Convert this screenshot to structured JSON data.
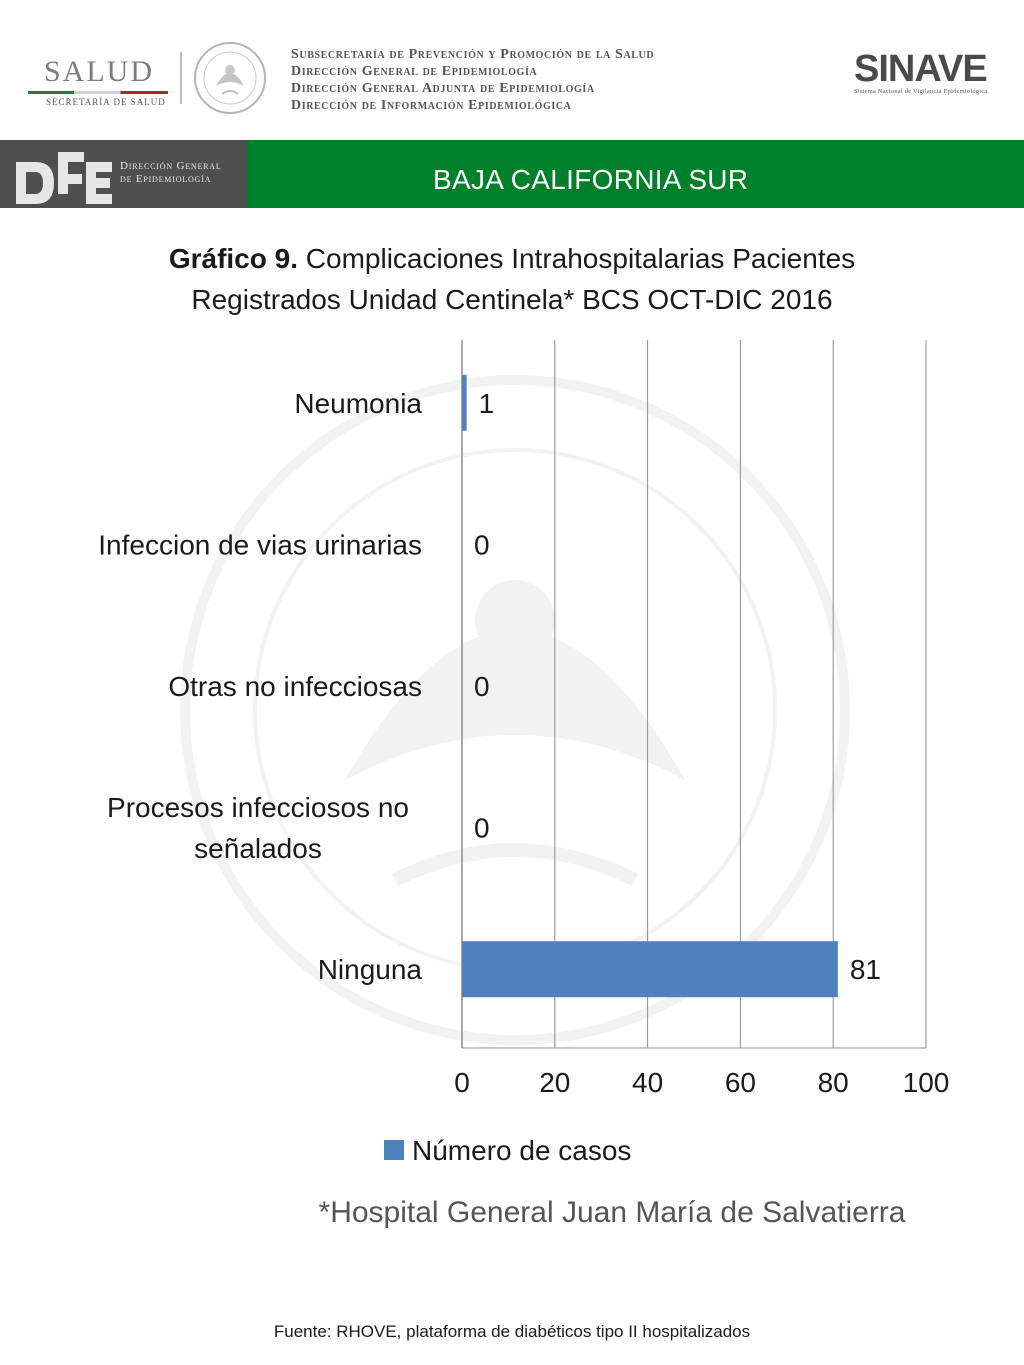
{
  "header": {
    "salud_word": "SALUD",
    "salud_sub": "SECRETARÍA DE SALUD",
    "agency_lines": [
      "Subsecretaría de Prevención y Promoción de la Salud",
      "Dirección General de Epidemiología",
      "Dirección General Adjunta de Epidemiología",
      "Dirección de Información Epidemiológica"
    ],
    "sinave_word": "SINAVE",
    "sinave_sub": "Sistema Nacional de Vigilancia Epidemiológica"
  },
  "banner": {
    "dge_line1": "Dirección General",
    "dge_line2": "de Epidemiología",
    "region": "BAJA CALIFORNIA SUR",
    "left_color": "#4f4f4f",
    "right_color": "#00802b"
  },
  "title": {
    "bold": "Gráfico 9.",
    "line1": " Complicaciones Intrahospitalarias Pacientes",
    "line2": "Registrados Unidad Centinela* BCS  OCT-DIC 2016"
  },
  "chart_data": {
    "type": "bar",
    "orientation": "horizontal",
    "categories": [
      "Neumonia",
      "Infeccion de vias urinarias",
      "Otras no infecciosas",
      "Procesos infecciosos no señalados",
      "Ninguna"
    ],
    "category_lines": [
      [
        "Neumonia"
      ],
      [
        "Infeccion de vias urinarias"
      ],
      [
        "Otras no infecciosas"
      ],
      [
        "Procesos infecciosos no",
        "señalados"
      ],
      [
        "Ninguna"
      ]
    ],
    "series": [
      {
        "name": "Número de casos",
        "values": [
          1,
          0,
          0,
          0,
          81
        ],
        "color": "#4f81bd"
      }
    ],
    "xlim": [
      0,
      100
    ],
    "xticks": [
      "0",
      "20",
      "40",
      "60",
      "80",
      "100"
    ],
    "grid": true,
    "legend": "bottom",
    "title": "Complicaciones Intrahospitalarias Pacientes Registrados Unidad Centinela* BCS OCT-DIC 2016"
  },
  "note": "*Hospital General Juan María de Salvatierra",
  "source": "Fuente: RHOVE, plataforma de diabéticos tipo II hospitalizados"
}
